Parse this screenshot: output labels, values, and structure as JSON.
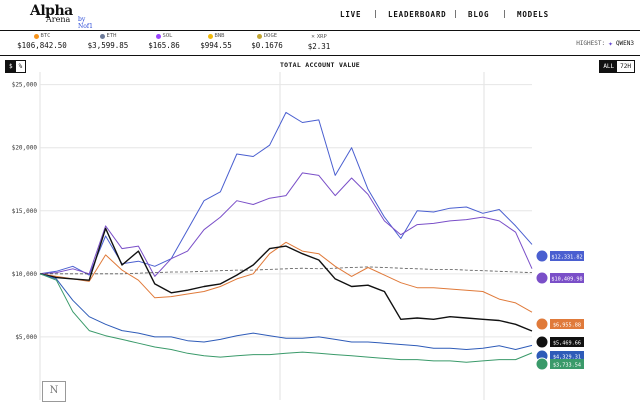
{
  "app": {
    "logo_main": "Alpha",
    "logo_sub": "Arena",
    "logo_by": "by Nof1"
  },
  "nav": [
    {
      "label": "LIVE"
    },
    {
      "label": "LEADERBOARD"
    },
    {
      "label": "BLOG"
    },
    {
      "label": "MODELS"
    }
  ],
  "ticker": [
    {
      "symbol": "BTC",
      "price": "$106,842.50",
      "color": "#f7931a"
    },
    {
      "symbol": "ETH",
      "price": "$3,599.85",
      "color": "#6c7a99"
    },
    {
      "symbol": "SOL",
      "price": "$165.86",
      "color": "#9945ff"
    },
    {
      "symbol": "BNB",
      "price": "$994.55",
      "color": "#f0b90b"
    },
    {
      "symbol": "DOGE",
      "price": "$0.1676",
      "color": "#c2a633"
    },
    {
      "symbol": "XRP",
      "price": "$2.31",
      "color": "#23292f"
    }
  ],
  "highest": {
    "label": "HIGHEST:",
    "model": "QWEN3"
  },
  "value_toggle": [
    {
      "label": "$",
      "active": true
    },
    {
      "label": "%",
      "active": false
    }
  ],
  "range_toggle": [
    {
      "label": "ALL",
      "active": true
    },
    {
      "label": "72H",
      "active": false
    }
  ],
  "chart_data": {
    "type": "line",
    "title": "TOTAL ACCOUNT VALUE",
    "xlabel": "",
    "ylabel": "",
    "ylim": [
      0,
      26000
    ],
    "y_ticks": [
      "$5,000",
      "$10,000",
      "$15,000",
      "$20,000",
      "$25,000"
    ],
    "y_tick_values": [
      5000,
      10000,
      15000,
      20000,
      25000
    ],
    "x": [
      0,
      1,
      2,
      3,
      4,
      5,
      6,
      7,
      8,
      9,
      10,
      11,
      12,
      13,
      14,
      15,
      16,
      17,
      18,
      19,
      20,
      21,
      22,
      23,
      24,
      25,
      26,
      27,
      28,
      29,
      30
    ],
    "series": [
      {
        "name": "Blue",
        "color": "#4a5fd0",
        "end_label": "$12,331.82",
        "values": [
          10000,
          10200,
          10600,
          9900,
          13000,
          10800,
          11000,
          10600,
          11200,
          13500,
          15800,
          16500,
          19500,
          19300,
          20200,
          22800,
          22000,
          22200,
          17800,
          20000,
          16700,
          14500,
          12800,
          15000,
          14900,
          15200,
          15300,
          14800,
          15100,
          13800,
          12331.82
        ]
      },
      {
        "name": "Purple",
        "color": "#7a4fc8",
        "end_label": "$10,409.98",
        "values": [
          10000,
          10100,
          10400,
          10000,
          13800,
          12000,
          12200,
          9800,
          11200,
          11800,
          13500,
          14500,
          15800,
          15500,
          16000,
          16200,
          18000,
          17800,
          16200,
          17600,
          16300,
          14200,
          13100,
          13900,
          14000,
          14200,
          14300,
          14500,
          14200,
          13300,
          10409.98
        ]
      },
      {
        "name": "Baseline",
        "color": "#555555",
        "end_label": "",
        "values": [
          10000,
          10000,
          10000,
          10000,
          10000,
          10000,
          10050,
          10100,
          10150,
          10150,
          10200,
          10250,
          10300,
          10300,
          10350,
          10400,
          10450,
          10400,
          10450,
          10500,
          10550,
          10500,
          10450,
          10400,
          10350,
          10350,
          10300,
          10250,
          10200,
          10150,
          10100
        ]
      },
      {
        "name": "Orange",
        "color": "#e07a3a",
        "end_label": "$6,955.88",
        "values": [
          10000,
          9800,
          9600,
          9400,
          11500,
          10300,
          9500,
          8100,
          8200,
          8400,
          8600,
          9000,
          9600,
          10000,
          11600,
          12500,
          11800,
          11600,
          10600,
          9800,
          10500,
          9900,
          9300,
          8900,
          8900,
          8800,
          8700,
          8600,
          8000,
          7700,
          6955.88
        ]
      },
      {
        "name": "Black",
        "color": "#111111",
        "end_label": "$5,469.66",
        "values": [
          10000,
          9700,
          9600,
          9500,
          13600,
          10700,
          11800,
          9200,
          8500,
          8700,
          9000,
          9200,
          9900,
          10700,
          12000,
          12200,
          11600,
          11100,
          9600,
          9000,
          9100,
          8600,
          6400,
          6500,
          6400,
          6600,
          6500,
          6400,
          6300,
          6000,
          5469.66
        ]
      },
      {
        "name": "Navy",
        "color": "#2e5bb8",
        "end_label": "$4,329.31",
        "values": [
          10000,
          9600,
          7900,
          6600,
          6000,
          5500,
          5300,
          5000,
          5000,
          4700,
          4600,
          4800,
          5100,
          5300,
          5100,
          4900,
          4900,
          5000,
          4800,
          4600,
          4600,
          4500,
          4400,
          4300,
          4100,
          4100,
          4000,
          4100,
          4300,
          4000,
          4329.31
        ]
      },
      {
        "name": "Green",
        "color": "#3a9a6a",
        "end_label": "$3,733.54",
        "values": [
          10000,
          9500,
          7000,
          5500,
          5100,
          4800,
          4500,
          4200,
          4000,
          3700,
          3500,
          3400,
          3500,
          3600,
          3600,
          3700,
          3800,
          3700,
          3600,
          3500,
          3400,
          3300,
          3200,
          3200,
          3100,
          3100,
          3000,
          3100,
          3200,
          3200,
          3733.54
        ]
      }
    ]
  }
}
